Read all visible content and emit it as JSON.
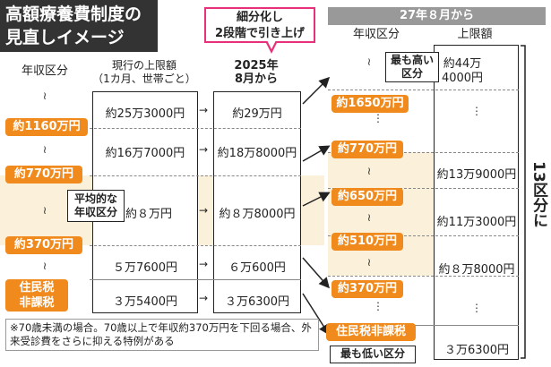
{
  "title": {
    "line1": "高額療養費制度の",
    "line2": "見直しイメージ"
  },
  "callout": {
    "line1": "細分化し",
    "line2": "2段階で引き上げ"
  },
  "headers": {
    "income": "年収区分",
    "current_line1": "現行の上限額",
    "current_line2": "（1カ月、世帯ごと）",
    "y2025_line1": "2025年",
    "y2025_line2": "8月から",
    "y2027": "27年８月から",
    "income_right": "年収区分",
    "limit_right": "上限額"
  },
  "left_brackets": [
    "約1160万円",
    "約770万円",
    "約370万円"
  ],
  "left_exempt": {
    "line1": "住民税",
    "line2": "非課税"
  },
  "average_label": {
    "line1": "平均的な",
    "line2": "年収区分"
  },
  "current_values": [
    "約25万3000円",
    "約16万7000円",
    "約８万円",
    "５万7600円",
    "３万5400円"
  ],
  "values_2025": [
    "約29万円",
    "約18万8000円",
    "約８万8000円",
    "６万600円",
    "３万6300円"
  ],
  "right_brackets": [
    "約1650万円",
    "約770万円",
    "約650万円",
    "約510万円",
    "約370万円"
  ],
  "right_exempt": "住民税非課税",
  "highest_label": {
    "line1": "最も高い",
    "line2": "区分"
  },
  "lowest_label": "最も低い区分",
  "values_2027": [
    "約44万\n4000円",
    "約13万9000円",
    "約11万3000円",
    "約８万8000円",
    "３万6300円"
  ],
  "top_value_2027": {
    "line1": "約44万",
    "line2": "4000円"
  },
  "split_label": "13区分に",
  "note": "※70歳未満の場合。70歳以上で年収約370万円を下回る場合、外来受診費をさらに抑える特例がある",
  "colors": {
    "orange": "#f08a1c",
    "pink": "#e8307a",
    "band": "#fbf0d9",
    "dark": "#333333"
  }
}
